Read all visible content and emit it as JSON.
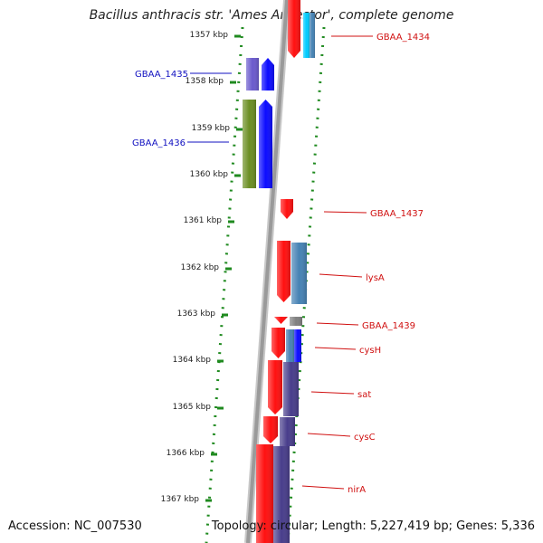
{
  "title": "Bacillus anthracis str. 'Ames Ancestor', complete genome",
  "footer": {
    "accession": "Accession: NC_007530",
    "summary": "Topology: circular; Length: 5,227,419 bp; Genes: 5,336"
  },
  "colors": {
    "backbone": "#9a9a9a",
    "ruler": "#1f8a1f",
    "label_forward_strand": "#1010c0",
    "label_reverse_strand": "#d01010",
    "gene_red": "#ff1010",
    "gene_blue": "#0b0bff",
    "gene_violet": "#6a5acd",
    "gene_olive": "#6b8e23",
    "gene_steelblue": "#4682b4",
    "gene_slateblue": "#483d8b",
    "gene_cyan": "#00ccff"
  },
  "ruler_labels": [
    "1357 kbp",
    "1358 kbp",
    "1359 kbp",
    "1360 kbp",
    "1361 kbp",
    "1362 kbp",
    "1363 kbp",
    "1364 kbp",
    "1365 kbp",
    "1366 kbp",
    "1367 kbp"
  ],
  "gene_labels": [
    {
      "name": "GBAA_1434",
      "strand": "reverse"
    },
    {
      "name": "GBAA_1435",
      "strand": "forward"
    },
    {
      "name": "GBAA_1436",
      "strand": "forward"
    },
    {
      "name": "GBAA_1437",
      "strand": "reverse"
    },
    {
      "name": "lysA",
      "strand": "reverse"
    },
    {
      "name": "GBAA_1439",
      "strand": "reverse"
    },
    {
      "name": "cysH",
      "strand": "reverse"
    },
    {
      "name": "sat",
      "strand": "reverse"
    },
    {
      "name": "cysC",
      "strand": "reverse"
    },
    {
      "name": "nirA",
      "strand": "reverse"
    }
  ]
}
